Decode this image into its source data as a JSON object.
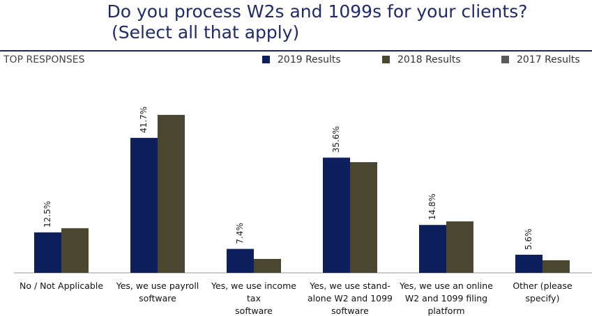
{
  "chart_data": {
    "type": "bar",
    "title": "Do you process W2s and 1099s for your clients?",
    "subtitle": "(Select all that apply)",
    "section_label": "TOP RESPONSES",
    "categories": [
      "No / Not Applicable",
      "Yes, we use payroll\nsoftware",
      "Yes, we use income tax\nsoftware",
      "Yes, we use stand-\nalone W2 and 1099\nsoftware",
      "Yes, we use an online\nW2 and 1099 filing\nplatform",
      "Other (please specify)"
    ],
    "series": [
      {
        "name": "2019 Results",
        "color": "#0d1f5c",
        "values": [
          12.5,
          41.7,
          7.4,
          35.6,
          14.8,
          5.6
        ],
        "value_labels": [
          "12.5%",
          "41.7%",
          "7.4%",
          "35.6%",
          "14.8%",
          "5.6%"
        ]
      },
      {
        "name": "2018 Results",
        "color": "#4a4630",
        "values": [
          13.8,
          48.8,
          4.3,
          34.2,
          15.9,
          3.9
        ]
      },
      {
        "name": "2017 Results",
        "color": "#595959",
        "values": [
          null,
          null,
          null,
          null,
          null,
          null
        ]
      }
    ]
  }
}
